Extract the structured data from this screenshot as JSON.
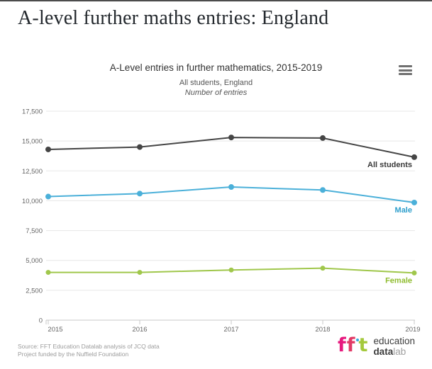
{
  "page": {
    "title": "A-level further maths entries: England"
  },
  "chart": {
    "title": "A-Level entries in further mathematics, 2015-2019",
    "subtitle": "All students, England",
    "units_label": "Number of entries",
    "menu_icon": "export-hamburger-menu"
  },
  "chart_data": {
    "type": "line",
    "x": [
      2015,
      2016,
      2017,
      2018,
      2019
    ],
    "series": [
      {
        "name": "All students",
        "values": [
          14300,
          14500,
          15300,
          15250,
          13650
        ],
        "color": "#454545",
        "label_color": "#3a3a3a",
        "marker_radius": 4
      },
      {
        "name": "Male",
        "values": [
          10350,
          10600,
          11150,
          10900,
          9850
        ],
        "color": "#4bb0d9",
        "label_color": "#2f9fcc",
        "marker_radius": 4
      },
      {
        "name": "Female",
        "values": [
          4000,
          4000,
          4200,
          4350,
          3950
        ],
        "color": "#a0c74c",
        "label_color": "#8fbc2f",
        "marker_radius": 3.5
      }
    ],
    "ylim": [
      0,
      17500
    ],
    "ytick_step": 2500,
    "ytick_labels": [
      "0",
      "2,500",
      "5,000",
      "7,500",
      "10,000",
      "12,500",
      "15,000",
      "17,500"
    ],
    "xtick_labels": [
      "2015",
      "2016",
      "2017",
      "2018",
      "2019"
    ],
    "grid": true,
    "legend_position": "series-end-labels",
    "axis_color": "#c8c8c8",
    "grid_color": "#e7e7e7",
    "tick_label_color": "#666666"
  },
  "footer": {
    "source_line1": "Source: FFT Education Datalab analysis of JCQ data",
    "source_line2": "Project funded by the Nuffield Foundation",
    "logo": {
      "f1": "f",
      "f2": "f",
      "t": "t",
      "word1": "education",
      "word2_dark": "data",
      "word2_light": "lab",
      "colors": {
        "f1": "#e6197e",
        "f2": "#e13a66",
        "dot": "#33a9dc",
        "t": "#a4c93c",
        "word_dark": "#3d3d3d",
        "word_light": "#9e9e9e"
      }
    }
  }
}
